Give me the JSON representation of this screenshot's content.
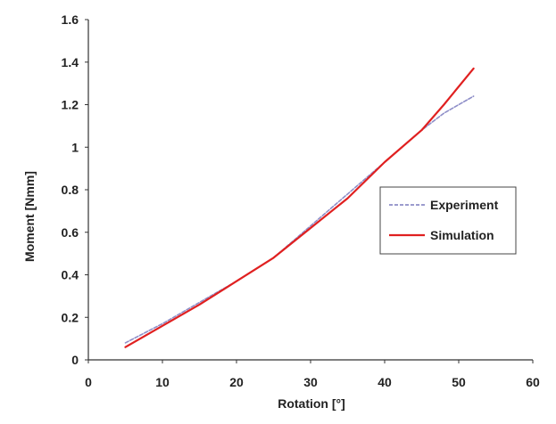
{
  "chart_data": {
    "type": "line",
    "title": "",
    "xlabel": "Rotation [°]",
    "ylabel": "Moment [Nmm]",
    "xlim": [
      0,
      60
    ],
    "ylim": [
      0,
      1.6
    ],
    "x_ticks": [
      "0",
      "10",
      "20",
      "30",
      "40",
      "50",
      "60"
    ],
    "y_ticks": [
      "0",
      "0.2",
      "0.4",
      "0.6",
      "0.8",
      "1",
      "1.2",
      "1.4",
      "1.6"
    ],
    "grid": false,
    "legend_position": "right",
    "series": [
      {
        "name": "Experiment",
        "color": "#8e8ec8",
        "style": "dashed",
        "x": [
          5,
          10,
          15,
          20,
          25,
          30,
          35,
          40,
          45,
          48,
          52
        ],
        "y": [
          0.08,
          0.17,
          0.27,
          0.37,
          0.48,
          0.63,
          0.78,
          0.93,
          1.08,
          1.16,
          1.24
        ]
      },
      {
        "name": "Simulation",
        "color": "#e02020",
        "style": "solid",
        "x": [
          5,
          10,
          15,
          20,
          25,
          30,
          35,
          40,
          45,
          48,
          52
        ],
        "y": [
          0.06,
          0.16,
          0.26,
          0.37,
          0.48,
          0.62,
          0.76,
          0.93,
          1.08,
          1.2,
          1.37
        ]
      }
    ]
  }
}
